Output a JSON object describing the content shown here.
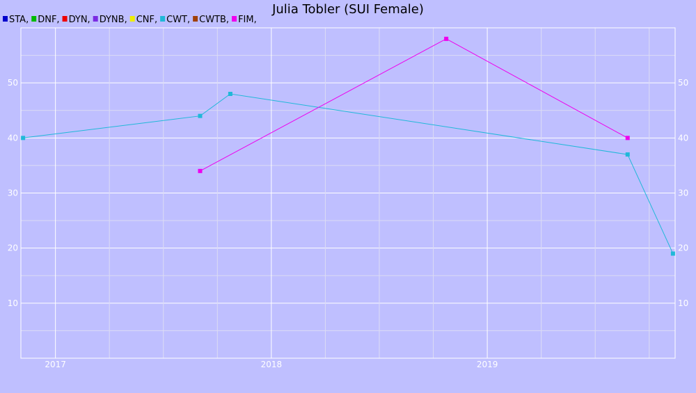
{
  "chart_data": {
    "type": "line",
    "title": "Julia Tobler (SUI Female)",
    "xlabel": "",
    "ylabel": "",
    "legend_placement": "top-left",
    "legend": [
      {
        "label": "STA,",
        "color": "#0000cc"
      },
      {
        "label": "DNF,",
        "color": "#00bb00"
      },
      {
        "label": "DYN,",
        "color": "#ee0000"
      },
      {
        "label": "DYNB,",
        "color": "#7a2be2"
      },
      {
        "label": "CNF,",
        "color": "#eeee00"
      },
      {
        "label": "CWT,",
        "color": "#20b8d8"
      },
      {
        "label": "CWTB,",
        "color": "#a0400a"
      },
      {
        "label": "FIM,",
        "color": "#ee00ee"
      }
    ],
    "x_ticks": [
      "2017",
      "2018",
      "2019"
    ],
    "x_tick_years": [
      2017,
      2018,
      2019
    ],
    "xlim": [
      2016.84,
      2019.87
    ],
    "y_ticks": [
      10,
      20,
      30,
      40,
      50
    ],
    "ylim": [
      0,
      60
    ],
    "grid": true,
    "series": [
      {
        "name": "CWT",
        "color": "#20b8d8",
        "points": [
          {
            "x": 2016.85,
            "y": 40
          },
          {
            "x": 2017.67,
            "y": 44
          },
          {
            "x": 2017.81,
            "y": 48
          },
          {
            "x": 2019.65,
            "y": 37
          },
          {
            "x": 2019.86,
            "y": 19
          }
        ]
      },
      {
        "name": "FIM",
        "color": "#ee00ee",
        "points": [
          {
            "x": 2017.67,
            "y": 34
          },
          {
            "x": 2018.81,
            "y": 58
          },
          {
            "x": 2019.65,
            "y": 40
          }
        ]
      }
    ]
  }
}
